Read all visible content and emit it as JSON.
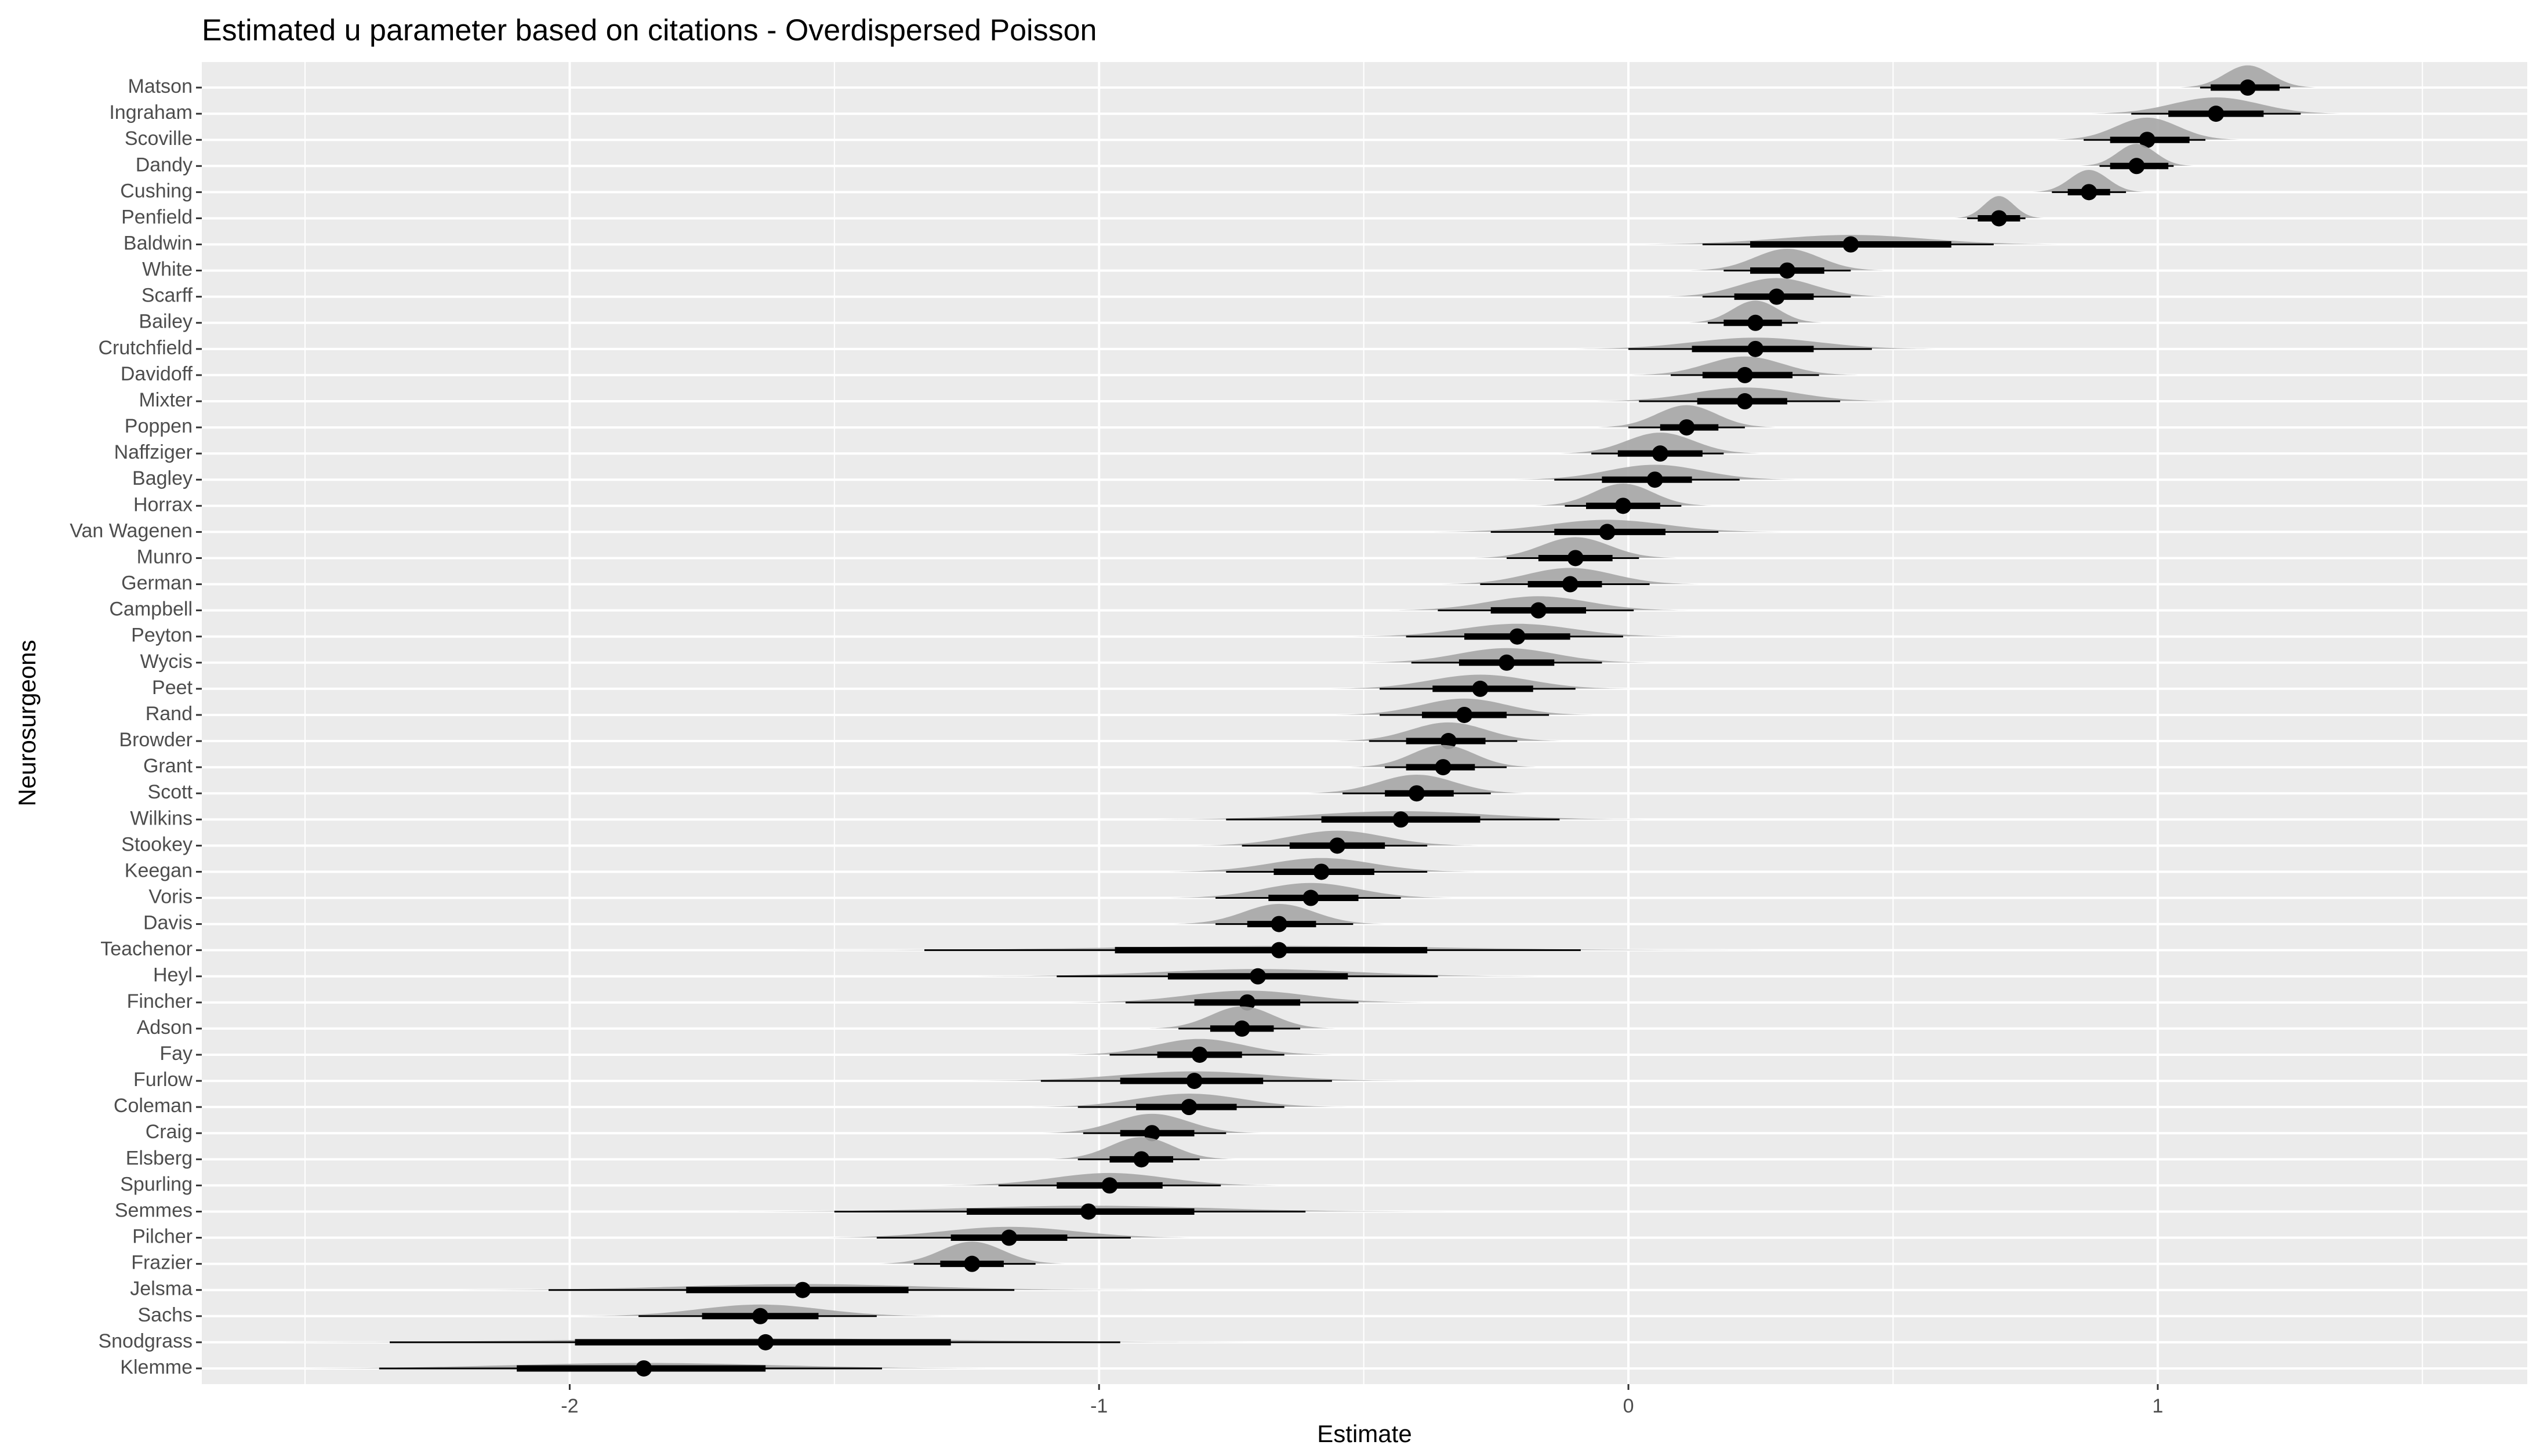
{
  "chart_data": {
    "type": "pointinterval",
    "title": "Estimated u parameter based on citations - Overdispersed Poisson",
    "x_label": "Estimate",
    "y_label": "Neurosurgeons",
    "categories": [
      "Matson",
      "Ingraham",
      "Scoville",
      "Dandy",
      "Cushing",
      "Penfield",
      "Baldwin",
      "White",
      "Scarff",
      "Bailey",
      "Crutchfield",
      "Davidoff",
      "Mixter",
      "Poppen",
      "Naffziger",
      "Bagley",
      "Horrax",
      "Van Wagenen",
      "Munro",
      "German",
      "Campbell",
      "Peyton",
      "Wycis",
      "Peet",
      "Rand",
      "Browder",
      "Grant",
      "Scott",
      "Wilkins",
      "Stookey",
      "Keegan",
      "Voris",
      "Davis",
      "Teachenor",
      "Heyl",
      "Fincher",
      "Adson",
      "Fay",
      "Furlow",
      "Coleman",
      "Craig",
      "Elsberg",
      "Spurling",
      "Semmes",
      "Pilcher",
      "Frazier",
      "Jelsma",
      "Sachs",
      "Snodgrass",
      "Klemme"
    ],
    "values": [
      1.17,
      1.11,
      0.98,
      0.96,
      0.87,
      0.7,
      0.42,
      0.3,
      0.28,
      0.24,
      0.24,
      0.22,
      0.22,
      0.11,
      0.06,
      0.05,
      -0.01,
      -0.04,
      -0.1,
      -0.11,
      -0.17,
      -0.21,
      -0.23,
      -0.28,
      -0.31,
      -0.34,
      -0.35,
      -0.4,
      -0.43,
      -0.55,
      -0.58,
      -0.6,
      -0.66,
      -0.66,
      -0.7,
      -0.72,
      -0.73,
      -0.81,
      -0.82,
      -0.83,
      -0.9,
      -0.92,
      -0.98,
      -1.02,
      -1.17,
      -1.24,
      -1.56,
      -1.64,
      -1.63,
      -1.86
    ],
    "inner_low": [
      1.1,
      1.02,
      0.91,
      0.91,
      0.83,
      0.66,
      0.23,
      0.23,
      0.2,
      0.18,
      0.12,
      0.14,
      0.13,
      0.06,
      -0.02,
      -0.05,
      -0.08,
      -0.14,
      -0.17,
      -0.19,
      -0.26,
      -0.31,
      -0.32,
      -0.37,
      -0.39,
      -0.42,
      -0.42,
      -0.46,
      -0.58,
      -0.64,
      -0.67,
      -0.68,
      -0.72,
      -0.97,
      -0.87,
      -0.82,
      -0.79,
      -0.89,
      -0.96,
      -0.93,
      -0.96,
      -0.98,
      -1.08,
      -1.25,
      -1.28,
      -1.3,
      -1.78,
      -1.75,
      -1.99,
      -2.1
    ],
    "inner_high": [
      1.23,
      1.2,
      1.06,
      1.02,
      0.91,
      0.74,
      0.61,
      0.37,
      0.35,
      0.29,
      0.35,
      0.31,
      0.3,
      0.17,
      0.14,
      0.12,
      0.06,
      0.07,
      -0.03,
      -0.05,
      -0.08,
      -0.11,
      -0.14,
      -0.18,
      -0.23,
      -0.27,
      -0.29,
      -0.33,
      -0.28,
      -0.46,
      -0.48,
      -0.51,
      -0.59,
      -0.38,
      -0.53,
      -0.62,
      -0.67,
      -0.73,
      -0.69,
      -0.74,
      -0.82,
      -0.86,
      -0.88,
      -0.82,
      -1.06,
      -1.18,
      -1.36,
      -1.53,
      -1.28,
      -1.63
    ],
    "outer_low": [
      1.08,
      0.95,
      0.86,
      0.89,
      0.8,
      0.64,
      0.14,
      0.18,
      0.14,
      0.15,
      0.0,
      0.08,
      0.02,
      0.0,
      -0.07,
      -0.14,
      -0.12,
      -0.26,
      -0.23,
      -0.28,
      -0.36,
      -0.42,
      -0.41,
      -0.47,
      -0.47,
      -0.49,
      -0.46,
      -0.54,
      -0.76,
      -0.73,
      -0.76,
      -0.78,
      -0.78,
      -1.33,
      -1.08,
      -0.95,
      -0.85,
      -0.98,
      -1.11,
      -1.04,
      -1.03,
      -1.04,
      -1.19,
      -1.5,
      -1.42,
      -1.35,
      -2.04,
      -1.87,
      -2.34,
      -2.36
    ],
    "outer_high": [
      1.25,
      1.27,
      1.09,
      1.03,
      0.94,
      0.75,
      0.69,
      0.42,
      0.42,
      0.32,
      0.46,
      0.36,
      0.4,
      0.22,
      0.18,
      0.21,
      0.1,
      0.17,
      0.02,
      0.04,
      0.01,
      -0.01,
      -0.05,
      -0.1,
      -0.15,
      -0.21,
      -0.23,
      -0.26,
      -0.13,
      -0.38,
      -0.38,
      -0.43,
      -0.52,
      -0.09,
      -0.36,
      -0.51,
      -0.62,
      -0.65,
      -0.56,
      -0.65,
      -0.76,
      -0.81,
      -0.77,
      -0.61,
      -0.94,
      -1.12,
      -1.16,
      -1.42,
      -0.96,
      -1.41
    ],
    "xlim": [
      -2.695,
      1.698
    ],
    "xticks": [
      -2,
      -1,
      0,
      1
    ],
    "grid": true
  }
}
